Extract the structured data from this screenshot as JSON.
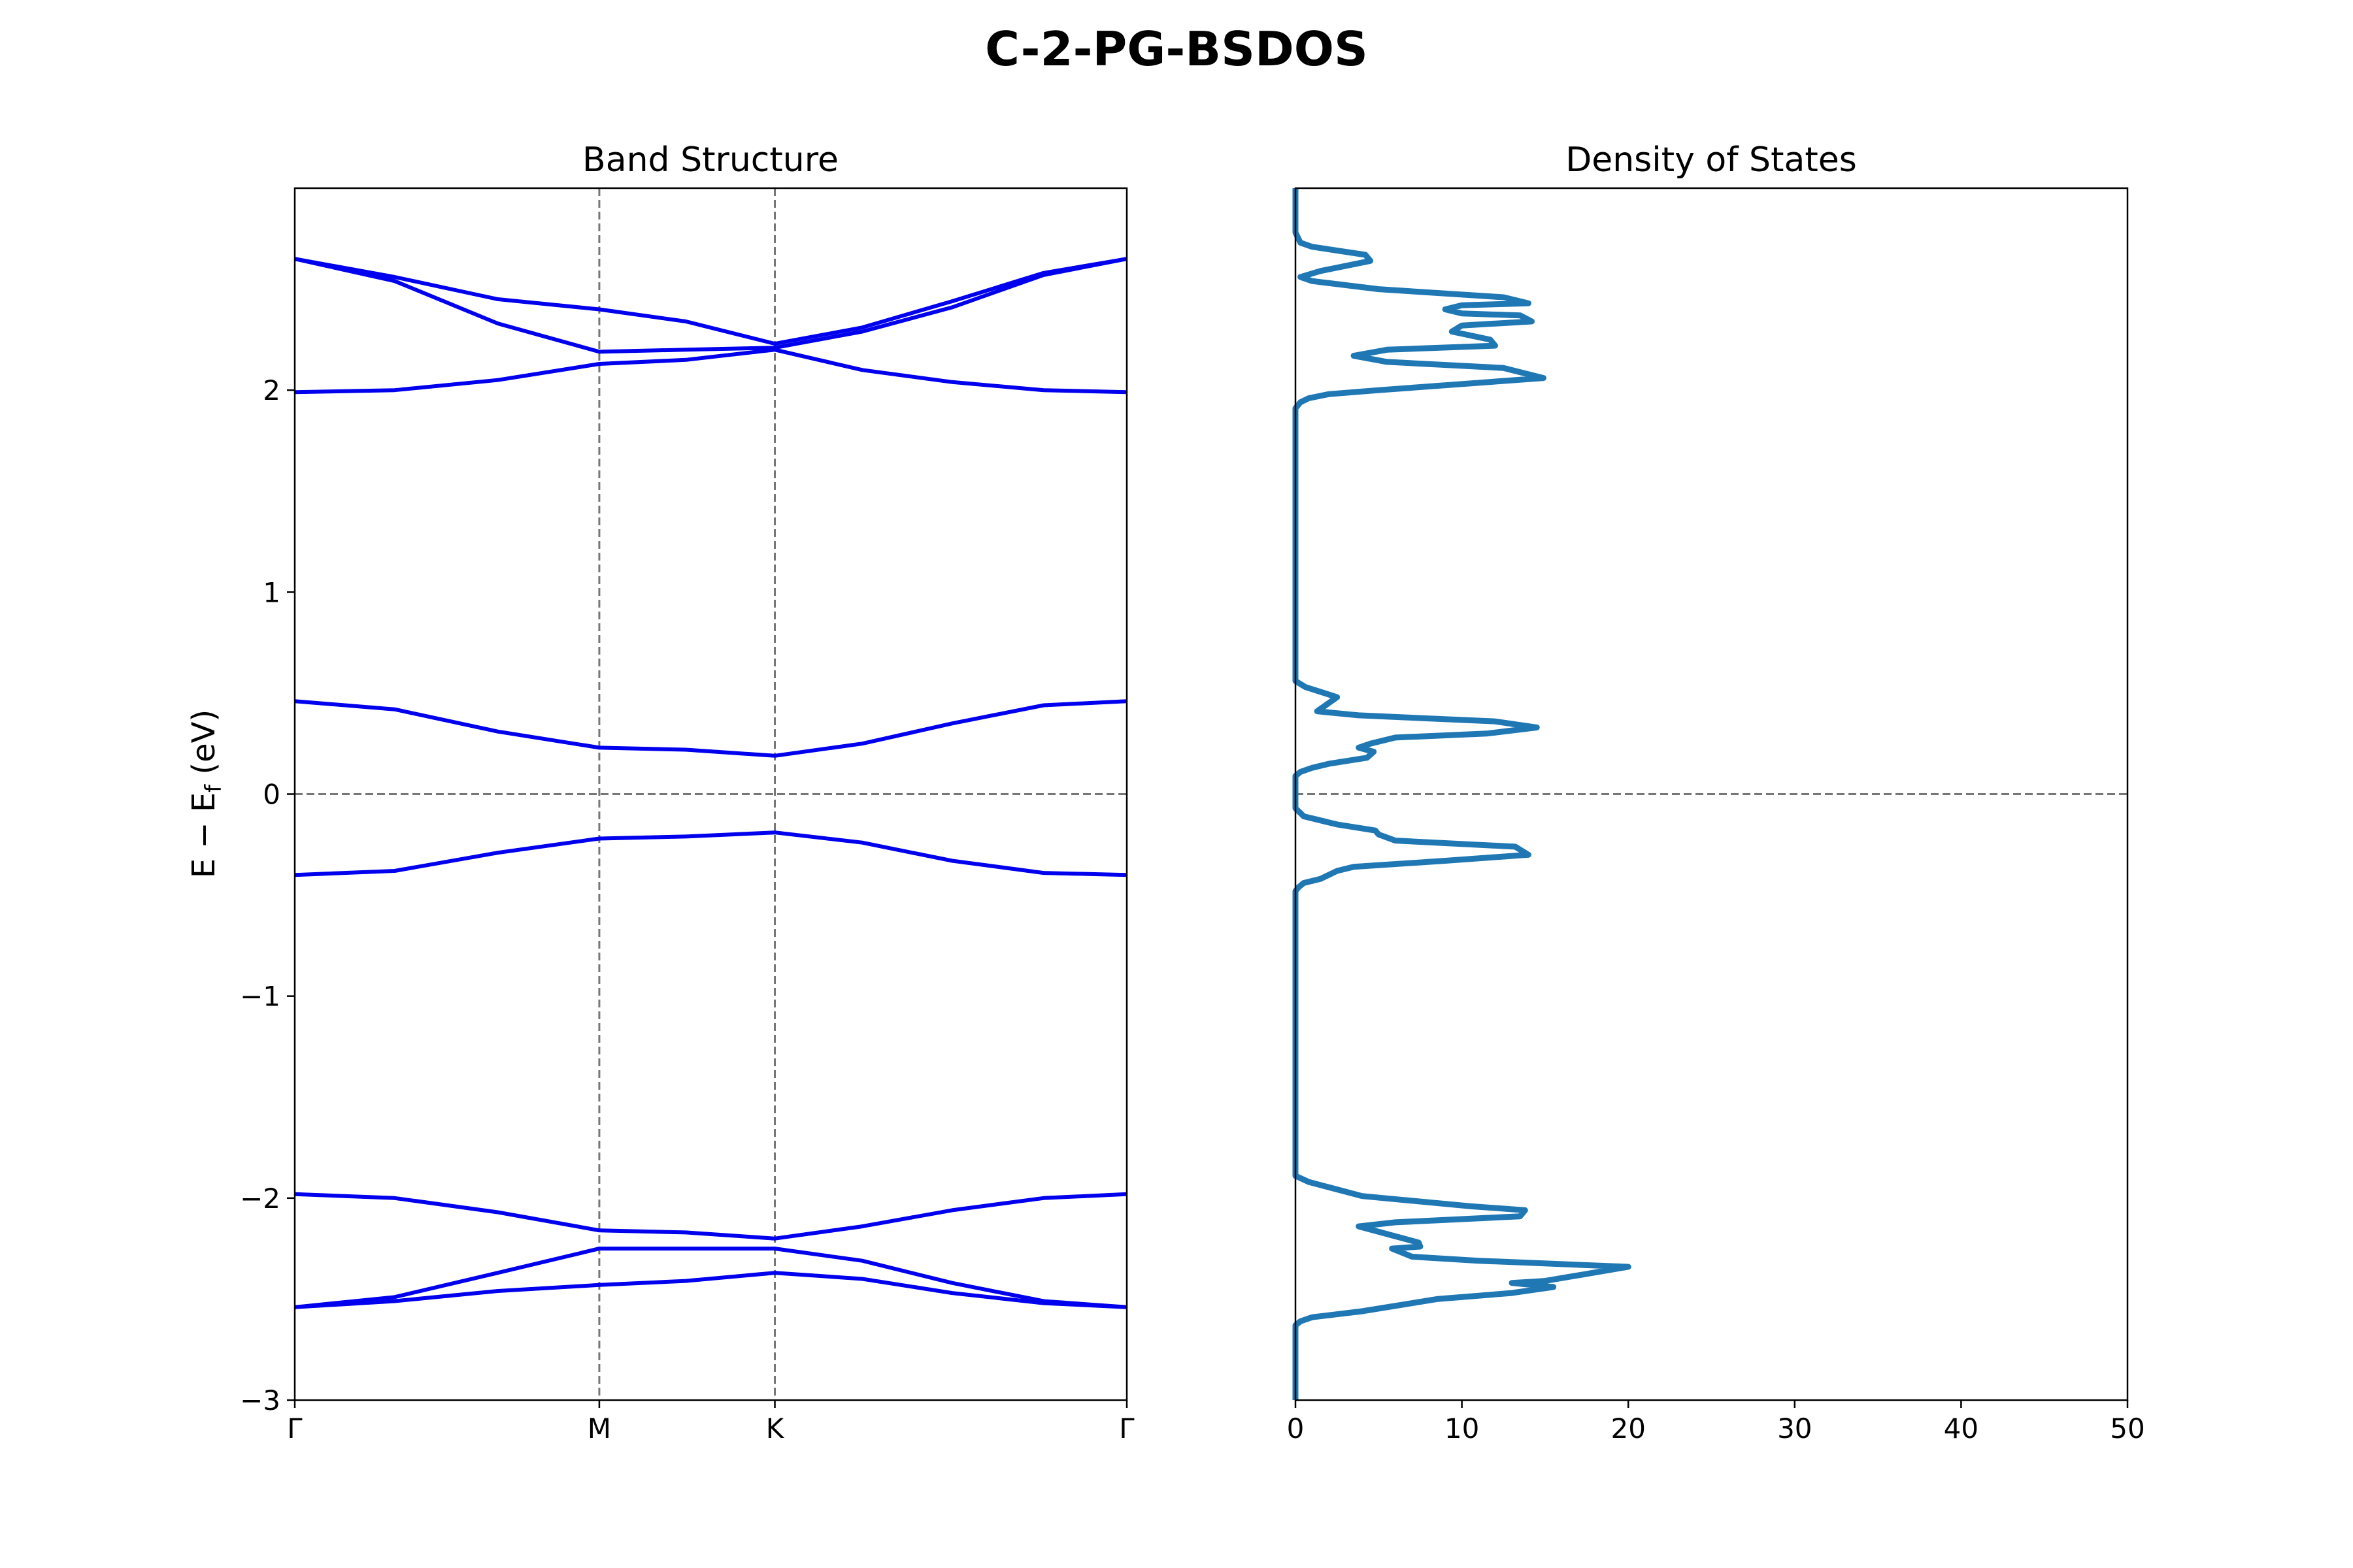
{
  "figure": {
    "title": "C-2-PG-BSDOS"
  },
  "chart_data": [
    {
      "type": "line",
      "title": "Band Structure",
      "ylabel": "E − E",
      "ylabel_sub": "f",
      "ylabel_unit": " (eV)",
      "xlim": [
        0,
        1
      ],
      "ylim": [
        -3,
        3
      ],
      "yticks": [
        -3,
        -2,
        -1,
        0,
        1,
        2
      ],
      "ytick_labels": [
        "−3",
        "−2",
        "−1",
        "0",
        "1",
        "2"
      ],
      "kpoints": [
        {
          "label": "Γ",
          "x": 0.0
        },
        {
          "label": "M",
          "x": 0.366
        },
        {
          "label": "K",
          "x": 0.577
        },
        {
          "label": "Γ",
          "x": 1.0
        }
      ],
      "line_color": "#0000ee",
      "fermi_level": 0,
      "grid": false,
      "x": [
        0.0,
        0.12,
        0.244,
        0.366,
        0.47,
        0.577,
        0.682,
        0.79,
        0.9,
        1.0
      ],
      "series": [
        {
          "values": [
            -2.54,
            -2.51,
            -2.46,
            -2.43,
            -2.41,
            -2.37,
            -2.4,
            -2.47,
            -2.52,
            -2.54
          ]
        },
        {
          "values": [
            -2.54,
            -2.49,
            -2.37,
            -2.25,
            -2.25,
            -2.25,
            -2.31,
            -2.42,
            -2.51,
            -2.54
          ]
        },
        {
          "values": [
            -1.98,
            -2.0,
            -2.07,
            -2.16,
            -2.17,
            -2.2,
            -2.14,
            -2.06,
            -2.0,
            -1.98
          ]
        },
        {
          "values": [
            -0.4,
            -0.38,
            -0.29,
            -0.22,
            -0.21,
            -0.19,
            -0.24,
            -0.33,
            -0.39,
            -0.4
          ]
        },
        {
          "values": [
            0.46,
            0.42,
            0.31,
            0.23,
            0.22,
            0.19,
            0.25,
            0.35,
            0.44,
            0.46
          ]
        },
        {
          "values": [
            1.99,
            2.0,
            2.05,
            2.13,
            2.15,
            2.2,
            2.1,
            2.04,
            2.0,
            1.99
          ]
        },
        {
          "values": [
            2.65,
            2.54,
            2.33,
            2.19,
            2.2,
            2.21,
            2.29,
            2.41,
            2.57,
            2.65
          ]
        },
        {
          "values": [
            2.65,
            2.56,
            2.45,
            2.4,
            2.34,
            2.23,
            2.31,
            2.44,
            2.58,
            2.65
          ]
        }
      ]
    },
    {
      "type": "line",
      "title": "Density of States",
      "xlim": [
        0,
        50
      ],
      "ylim": [
        -3,
        3
      ],
      "xticks": [
        0,
        10,
        20,
        30,
        40,
        50
      ],
      "xtick_labels": [
        "0",
        "10",
        "20",
        "30",
        "40",
        "50"
      ],
      "line_color": "#1f77b4",
      "fermi_level": 0,
      "grid": false,
      "dos": [
        [
          0.0,
          -3.0
        ],
        [
          0.0,
          -2.63
        ],
        [
          0.3,
          -2.61
        ],
        [
          1.0,
          -2.59
        ],
        [
          4.0,
          -2.56
        ],
        [
          8.5,
          -2.5
        ],
        [
          13.0,
          -2.47
        ],
        [
          15.5,
          -2.44
        ],
        [
          13.0,
          -2.42
        ],
        [
          15.0,
          -2.41
        ],
        [
          20.0,
          -2.34
        ],
        [
          11.0,
          -2.31
        ],
        [
          7.0,
          -2.29
        ],
        [
          5.8,
          -2.25
        ],
        [
          7.5,
          -2.24
        ],
        [
          7.4,
          -2.22
        ],
        [
          3.8,
          -2.14
        ],
        [
          6.0,
          -2.12
        ],
        [
          13.5,
          -2.09
        ],
        [
          13.8,
          -2.06
        ],
        [
          10.5,
          -2.04
        ],
        [
          4.0,
          -1.99
        ],
        [
          0.8,
          -1.92
        ],
        [
          0.0,
          -1.89
        ],
        [
          0.0,
          -0.48
        ],
        [
          0.2,
          -0.46
        ],
        [
          0.5,
          -0.44
        ],
        [
          1.5,
          -0.42
        ],
        [
          2.5,
          -0.38
        ],
        [
          3.5,
          -0.36
        ],
        [
          9.0,
          -0.33
        ],
        [
          14.0,
          -0.3
        ],
        [
          13.2,
          -0.26
        ],
        [
          6.0,
          -0.23
        ],
        [
          5.0,
          -0.2
        ],
        [
          4.8,
          -0.18
        ],
        [
          2.5,
          -0.15
        ],
        [
          0.5,
          -0.11
        ],
        [
          0.0,
          -0.07
        ],
        [
          0.0,
          0.09
        ],
        [
          0.3,
          0.11
        ],
        [
          1.0,
          0.13
        ],
        [
          2.0,
          0.15
        ],
        [
          4.3,
          0.18
        ],
        [
          4.7,
          0.21
        ],
        [
          3.8,
          0.23
        ],
        [
          4.5,
          0.25
        ],
        [
          6.0,
          0.28
        ],
        [
          11.5,
          0.3
        ],
        [
          14.5,
          0.33
        ],
        [
          12.0,
          0.36
        ],
        [
          3.8,
          0.39
        ],
        [
          1.3,
          0.41
        ],
        [
          2.5,
          0.48
        ],
        [
          0.6,
          0.53
        ],
        [
          0.0,
          0.56
        ],
        [
          0.0,
          1.91
        ],
        [
          0.3,
          1.94
        ],
        [
          0.8,
          1.96
        ],
        [
          2.0,
          1.98
        ],
        [
          5.0,
          2.0
        ],
        [
          14.9,
          2.06
        ],
        [
          12.5,
          2.11
        ],
        [
          5.5,
          2.14
        ],
        [
          3.5,
          2.17
        ],
        [
          5.5,
          2.2
        ],
        [
          12.0,
          2.22
        ],
        [
          11.7,
          2.25
        ],
        [
          9.4,
          2.29
        ],
        [
          10.0,
          2.32
        ],
        [
          14.2,
          2.34
        ],
        [
          13.5,
          2.37
        ],
        [
          10.0,
          2.38
        ],
        [
          9.0,
          2.4
        ],
        [
          10.0,
          2.42
        ],
        [
          14.0,
          2.43
        ],
        [
          12.5,
          2.46
        ],
        [
          5.0,
          2.5
        ],
        [
          1.0,
          2.54
        ],
        [
          0.3,
          2.56
        ],
        [
          1.5,
          2.59
        ],
        [
          4.5,
          2.64
        ],
        [
          4.2,
          2.67
        ],
        [
          1.0,
          2.71
        ],
        [
          0.3,
          2.73
        ],
        [
          0.0,
          2.78
        ],
        [
          0.0,
          3.0
        ]
      ]
    }
  ]
}
